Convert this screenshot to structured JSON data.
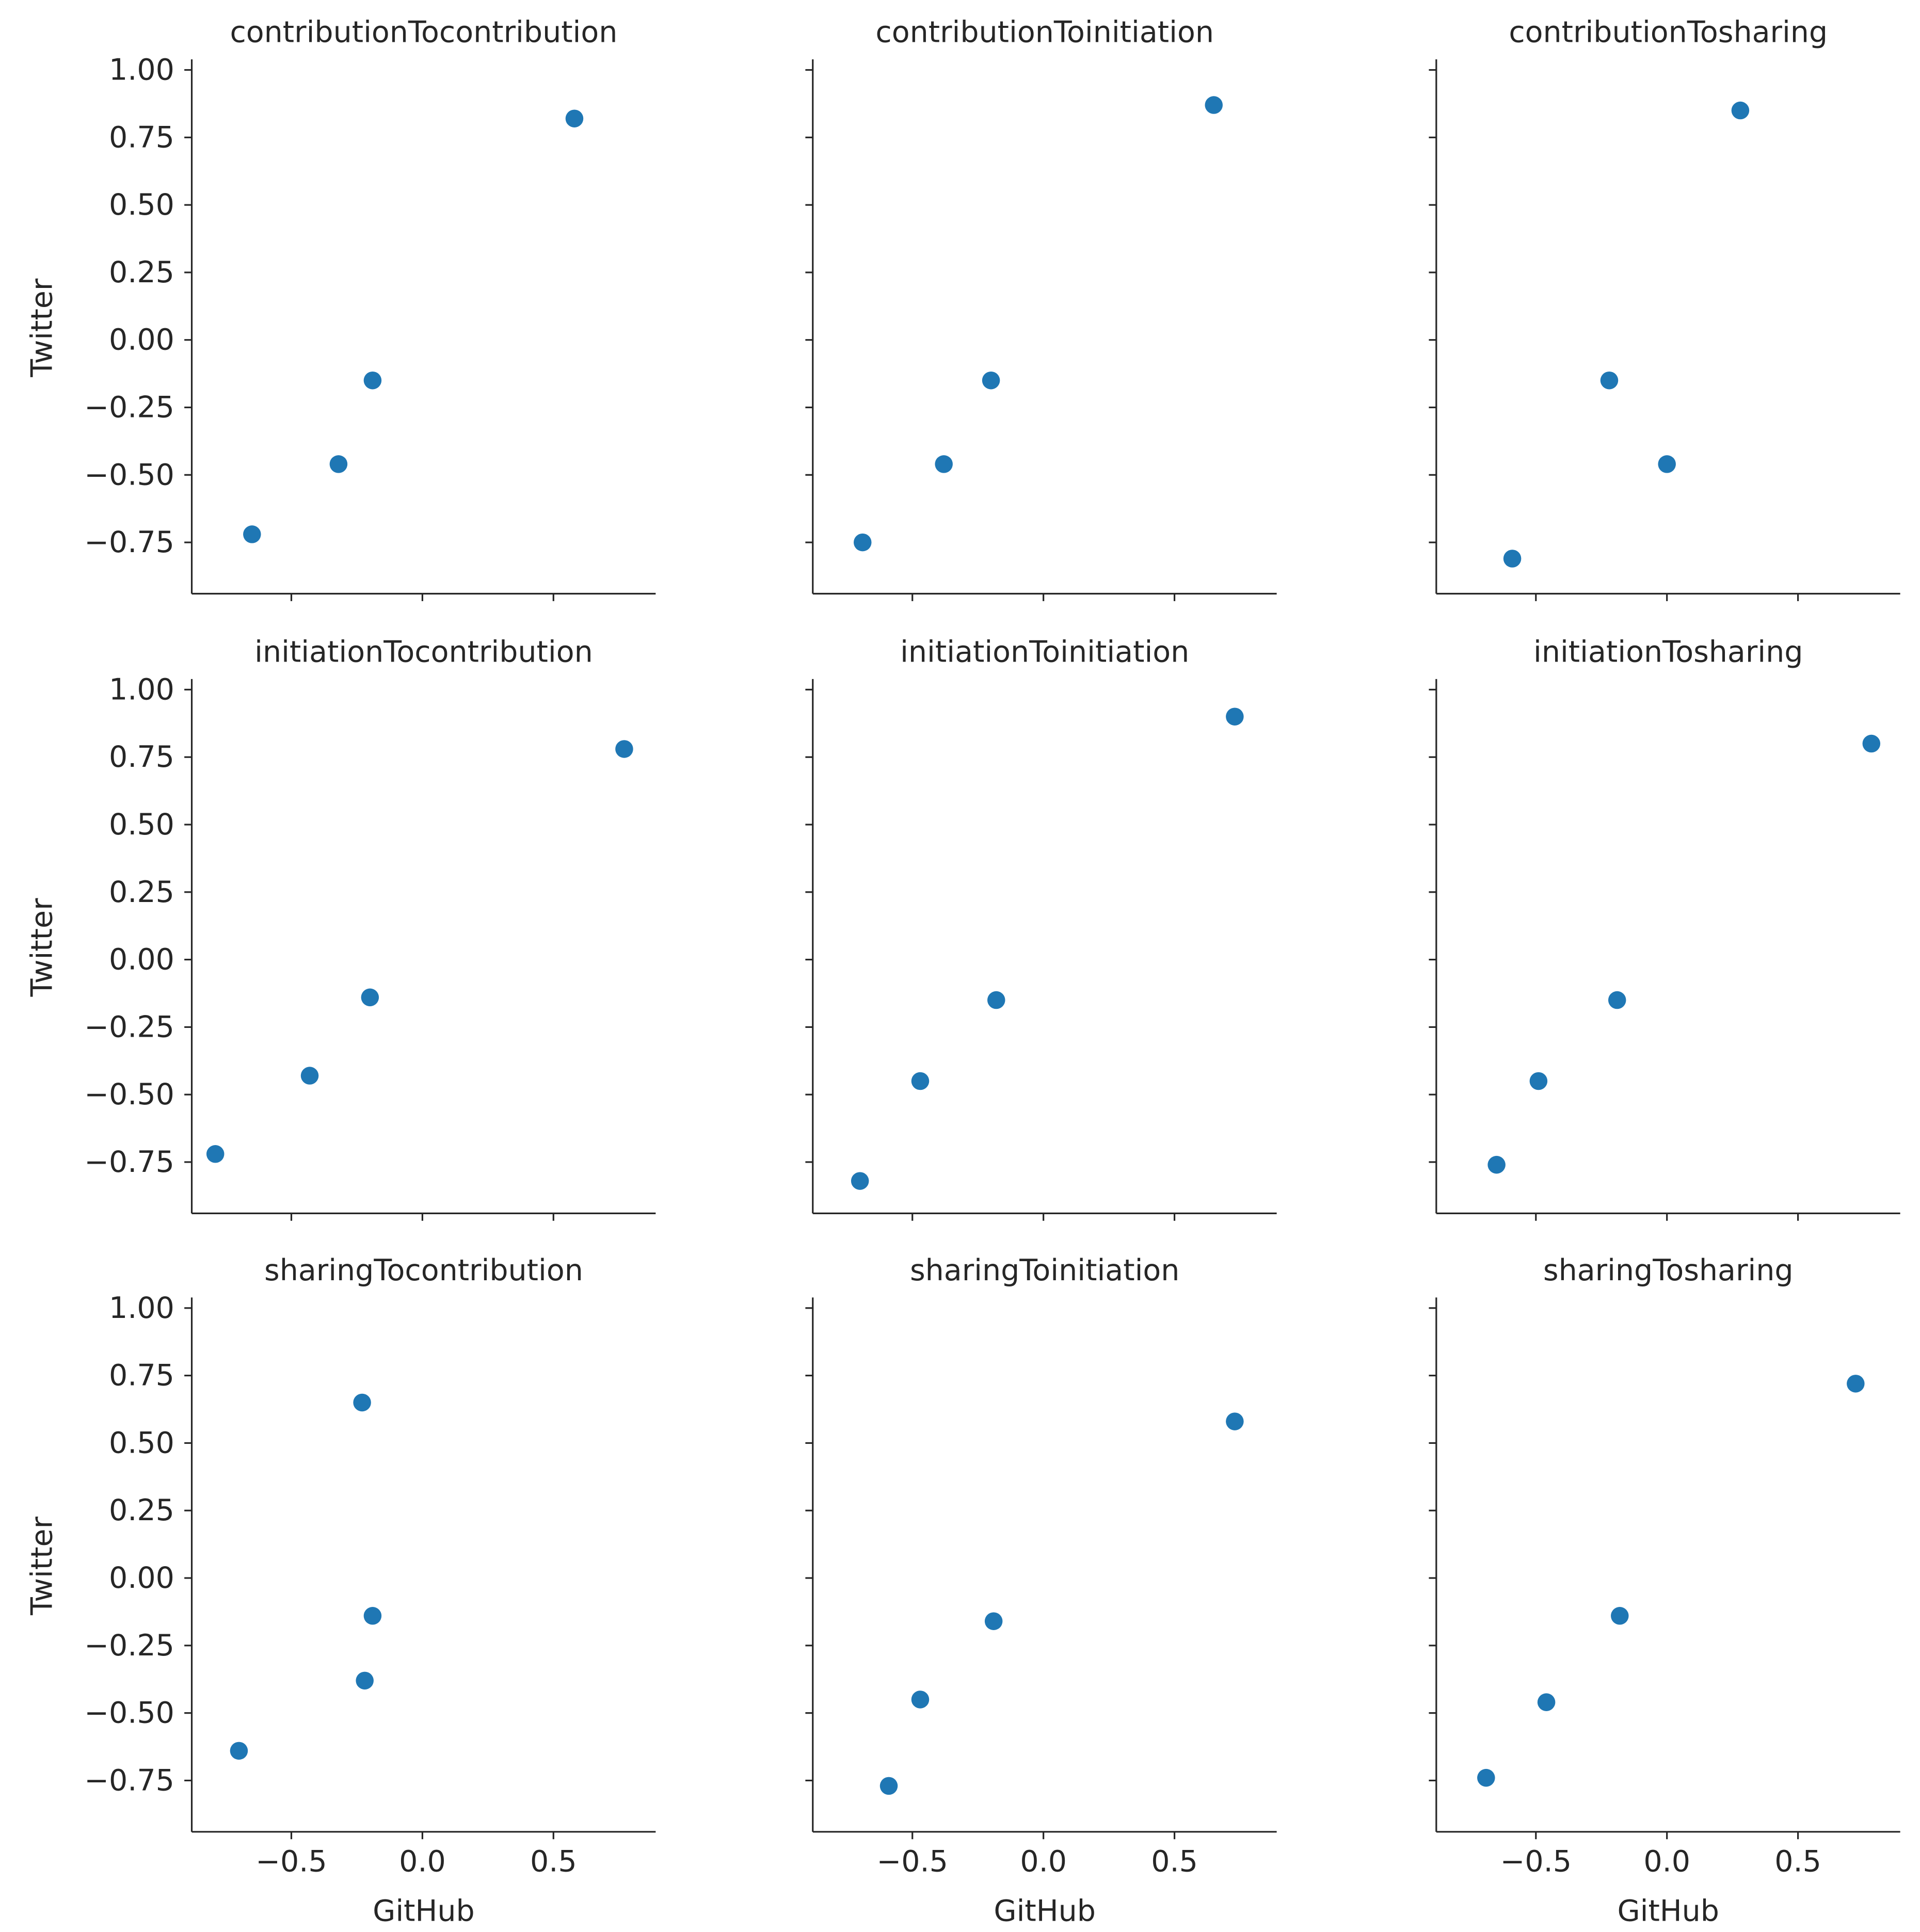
{
  "chart_data": {
    "type": "scatter",
    "layout": "facet-grid",
    "rows": 3,
    "cols": 3,
    "sharex": true,
    "sharey": true,
    "xlabel": "GitHub",
    "ylabel": "Twitter",
    "xlim": [
      -0.88,
      0.89
    ],
    "ylim": [
      -0.94,
      1.03
    ],
    "xticks": [
      -0.5,
      0.0,
      0.5
    ],
    "xtick_labels": [
      "−0.5",
      "0.0",
      "0.5"
    ],
    "yticks": [
      -0.75,
      -0.5,
      -0.25,
      0.0,
      0.25,
      0.5,
      0.75,
      1.0
    ],
    "ytick_labels": [
      "−0.75",
      "−0.50",
      "−0.25",
      "0.00",
      "0.25",
      "0.50",
      "0.75",
      "1.00"
    ],
    "marker_color": "#1f77b4",
    "grid": false,
    "legend": "none",
    "panels": [
      {
        "title": "contributionTocontribution",
        "x": [
          -0.65,
          -0.32,
          -0.19,
          0.58
        ],
        "y": [
          -0.72,
          -0.46,
          -0.15,
          0.82
        ]
      },
      {
        "title": "contributionToinitiation",
        "x": [
          -0.69,
          -0.38,
          -0.2,
          0.65
        ],
        "y": [
          -0.75,
          -0.46,
          -0.15,
          0.87
        ]
      },
      {
        "title": "contributionTosharing",
        "x": [
          -0.59,
          -0.22,
          0.0,
          0.28
        ],
        "y": [
          -0.81,
          -0.15,
          -0.46,
          0.85
        ]
      },
      {
        "title": "initiationTocontribution",
        "x": [
          -0.79,
          -0.43,
          -0.2,
          0.77
        ],
        "y": [
          -0.72,
          -0.43,
          -0.14,
          0.78
        ]
      },
      {
        "title": "initiationToinitiation",
        "x": [
          -0.7,
          -0.47,
          -0.18,
          0.73
        ],
        "y": [
          -0.82,
          -0.45,
          -0.15,
          0.9
        ]
      },
      {
        "title": "initiationTosharing",
        "x": [
          -0.65,
          -0.49,
          -0.19,
          0.78
        ],
        "y": [
          -0.76,
          -0.45,
          -0.15,
          0.8
        ]
      },
      {
        "title": "sharingTocontribution",
        "x": [
          -0.7,
          -0.23,
          -0.19,
          -0.22
        ],
        "y": [
          -0.64,
          0.65,
          -0.14,
          -0.38
        ]
      },
      {
        "title": "sharingToinitiation",
        "x": [
          -0.59,
          -0.47,
          -0.19,
          0.73
        ],
        "y": [
          -0.77,
          -0.45,
          -0.16,
          0.58
        ]
      },
      {
        "title": "sharingTosharing",
        "x": [
          -0.69,
          -0.46,
          -0.18,
          0.72
        ],
        "y": [
          -0.74,
          -0.46,
          -0.14,
          0.72
        ]
      }
    ]
  }
}
